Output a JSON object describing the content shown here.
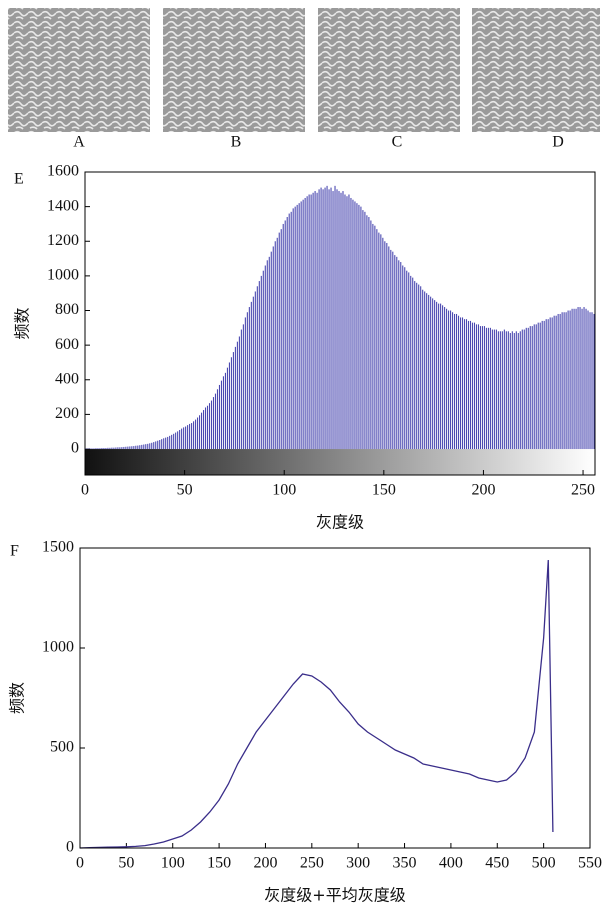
{
  "images": [
    {
      "label": "A"
    },
    {
      "label": "B"
    },
    {
      "label": "C"
    },
    {
      "label": "D"
    }
  ],
  "chart_data": [
    {
      "type": "bar",
      "panel_label": "E",
      "xlabel": "灰度级",
      "ylabel": "频数",
      "color": "#4a48b0",
      "gradient_bar": true,
      "xlim": [
        0,
        256
      ],
      "ylim": [
        -150,
        1600
      ],
      "xticks": [
        0,
        50,
        100,
        150,
        200,
        250
      ],
      "yticks": [
        0,
        200,
        400,
        600,
        800,
        1000,
        1200,
        1400,
        1600
      ],
      "grid": false,
      "x": [
        0,
        1,
        2,
        3,
        4,
        5,
        6,
        7,
        8,
        9,
        10,
        11,
        12,
        13,
        14,
        15,
        16,
        17,
        18,
        19,
        20,
        21,
        22,
        23,
        24,
        25,
        26,
        27,
        28,
        29,
        30,
        31,
        32,
        33,
        34,
        35,
        36,
        37,
        38,
        39,
        40,
        41,
        42,
        43,
        44,
        45,
        46,
        47,
        48,
        49,
        50,
        51,
        52,
        53,
        54,
        55,
        56,
        57,
        58,
        59,
        60,
        61,
        62,
        63,
        64,
        65,
        66,
        67,
        68,
        69,
        70,
        71,
        72,
        73,
        74,
        75,
        76,
        77,
        78,
        79,
        80,
        81,
        82,
        83,
        84,
        85,
        86,
        87,
        88,
        89,
        90,
        91,
        92,
        93,
        94,
        95,
        96,
        97,
        98,
        99,
        100,
        101,
        102,
        103,
        104,
        105,
        106,
        107,
        108,
        109,
        110,
        111,
        112,
        113,
        114,
        115,
        116,
        117,
        118,
        119,
        120,
        121,
        122,
        123,
        124,
        125,
        126,
        127,
        128,
        129,
        130,
        131,
        132,
        133,
        134,
        135,
        136,
        137,
        138,
        139,
        140,
        141,
        142,
        143,
        144,
        145,
        146,
        147,
        148,
        149,
        150,
        151,
        152,
        153,
        154,
        155,
        156,
        157,
        158,
        159,
        160,
        161,
        162,
        163,
        164,
        165,
        166,
        167,
        168,
        169,
        170,
        171,
        172,
        173,
        174,
        175,
        176,
        177,
        178,
        179,
        180,
        181,
        182,
        183,
        184,
        185,
        186,
        187,
        188,
        189,
        190,
        191,
        192,
        193,
        194,
        195,
        196,
        197,
        198,
        199,
        200,
        201,
        202,
        203,
        204,
        205,
        206,
        207,
        208,
        209,
        210,
        211,
        212,
        213,
        214,
        215,
        216,
        217,
        218,
        219,
        220,
        221,
        222,
        223,
        224,
        225,
        226,
        227,
        228,
        229,
        230,
        231,
        232,
        233,
        234,
        235,
        236,
        237,
        238,
        239,
        240,
        241,
        242,
        243,
        244,
        245,
        246,
        247,
        248,
        249,
        250,
        251,
        252,
        253,
        254,
        255
      ],
      "values": [
        3,
        3,
        4,
        4,
        4,
        5,
        5,
        5,
        6,
        6,
        6,
        7,
        7,
        8,
        8,
        9,
        10,
        10,
        11,
        12,
        13,
        14,
        15,
        16,
        17,
        19,
        20,
        22,
        24,
        26,
        28,
        30,
        33,
        36,
        40,
        44,
        48,
        52,
        57,
        62,
        66,
        70,
        76,
        82,
        88,
        95,
        102,
        110,
        118,
        125,
        130,
        138,
        145,
        150,
        160,
        170,
        182,
        195,
        210,
        225,
        240,
        250,
        265,
        280,
        300,
        320,
        345,
        370,
        395,
        420,
        440,
        470,
        500,
        530,
        560,
        590,
        620,
        650,
        690,
        720,
        760,
        790,
        820,
        850,
        880,
        910,
        940,
        970,
        1000,
        1030,
        1060,
        1090,
        1110,
        1140,
        1170,
        1200,
        1220,
        1250,
        1270,
        1300,
        1320,
        1340,
        1360,
        1370,
        1390,
        1400,
        1410,
        1420,
        1430,
        1440,
        1450,
        1460,
        1470,
        1470,
        1480,
        1490,
        1480,
        1500,
        1510,
        1500,
        1510,
        1520,
        1500,
        1510,
        1490,
        1520,
        1500,
        1490,
        1480,
        1490,
        1470,
        1460,
        1470,
        1450,
        1440,
        1430,
        1420,
        1410,
        1400,
        1380,
        1370,
        1350,
        1340,
        1320,
        1300,
        1290,
        1270,
        1250,
        1240,
        1220,
        1200,
        1190,
        1170,
        1150,
        1140,
        1120,
        1110,
        1090,
        1080,
        1060,
        1050,
        1030,
        1020,
        1000,
        990,
        970,
        960,
        950,
        940,
        920,
        910,
        900,
        890,
        880,
        870,
        860,
        850,
        840,
        840,
        830,
        820,
        810,
        800,
        800,
        790,
        780,
        780,
        770,
        760,
        760,
        750,
        750,
        740,
        740,
        730,
        730,
        720,
        720,
        710,
        710,
        710,
        700,
        700,
        700,
        690,
        690,
        690,
        680,
        680,
        680,
        690,
        680,
        680,
        670,
        680,
        670,
        680,
        670,
        680,
        690,
        690,
        700,
        700,
        710,
        710,
        720,
        720,
        730,
        730,
        740,
        740,
        750,
        750,
        760,
        760,
        770,
        770,
        780,
        780,
        790,
        790,
        790,
        800,
        800,
        810,
        810,
        810,
        820,
        820,
        810,
        820,
        810,
        800,
        790,
        790,
        780
      ]
    },
    {
      "type": "line",
      "panel_label": "F",
      "xlabel": "灰度级+平均灰度级",
      "ylabel": "频数",
      "color": "#3a2e8a",
      "xlim": [
        0,
        550
      ],
      "ylim": [
        0,
        1500
      ],
      "xticks": [
        0,
        50,
        100,
        150,
        200,
        250,
        300,
        350,
        400,
        450,
        500,
        550
      ],
      "yticks": [
        0,
        500,
        1000,
        1500
      ],
      "grid": false,
      "x": [
        0,
        10,
        20,
        30,
        40,
        50,
        60,
        70,
        80,
        90,
        100,
        110,
        120,
        130,
        140,
        150,
        160,
        170,
        180,
        190,
        200,
        210,
        220,
        230,
        240,
        250,
        260,
        270,
        280,
        290,
        300,
        310,
        320,
        330,
        340,
        350,
        360,
        370,
        380,
        390,
        400,
        410,
        420,
        430,
        440,
        450,
        460,
        470,
        480,
        490,
        500,
        505,
        510
      ],
      "values": [
        0,
        2,
        3,
        4,
        5,
        6,
        8,
        12,
        20,
        30,
        45,
        60,
        90,
        130,
        180,
        240,
        320,
        420,
        500,
        580,
        640,
        700,
        760,
        820,
        870,
        860,
        830,
        790,
        730,
        680,
        620,
        580,
        550,
        520,
        490,
        470,
        450,
        420,
        410,
        400,
        390,
        380,
        370,
        350,
        340,
        330,
        340,
        380,
        450,
        580,
        1050,
        1440,
        80
      ]
    }
  ]
}
